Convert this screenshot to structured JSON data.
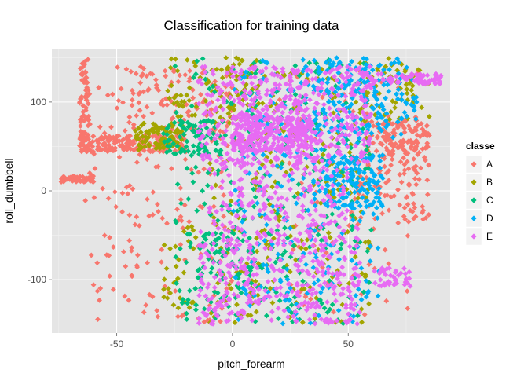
{
  "chart_data": {
    "type": "scatter",
    "title": "Classification for training data",
    "xlabel": "pitch_forearm",
    "ylabel": "roll_dumbbell",
    "xlim": [
      -78,
      94
    ],
    "ylim": [
      -160,
      160
    ],
    "x_ticks": [
      -50,
      0,
      50
    ],
    "y_ticks": [
      -100,
      0,
      100
    ],
    "x_tick_labels": [
      "-50",
      "0",
      "50"
    ],
    "y_tick_labels": [
      "-100",
      "0",
      "100"
    ],
    "grid": true,
    "panel_background": "#e5e5e5",
    "legend": {
      "title": "classe",
      "placement": "right",
      "entries": [
        {
          "label": "A",
          "color": "#F8766D"
        },
        {
          "label": "B",
          "color": "#A3A500"
        },
        {
          "label": "C",
          "color": "#00BF7D"
        },
        {
          "label": "D",
          "color": "#00B0F6"
        },
        {
          "label": "E",
          "color": "#E76BF3"
        }
      ]
    },
    "series": [
      {
        "name": "A",
        "color": "#F8766D",
        "clusters": [
          {
            "x": [
              -66,
              -62
            ],
            "y": [
              50,
              148
            ],
            "weight": 70
          },
          {
            "x": [
              -66,
              -20
            ],
            "y": [
              44,
              62
            ],
            "weight": 200
          },
          {
            "x": [
              -75,
              -60
            ],
            "y": [
              10,
              17
            ],
            "weight": 60
          },
          {
            "x": [
              -65,
              0
            ],
            "y": [
              -150,
              140
            ],
            "weight": 180
          },
          {
            "x": [
              -45,
              0
            ],
            "y": [
              60,
              140
            ],
            "weight": 80
          },
          {
            "x": [
              58,
              85
            ],
            "y": [
              40,
              80
            ],
            "weight": 120
          },
          {
            "x": [
              50,
              85
            ],
            "y": [
              -40,
              40
            ],
            "weight": 100
          },
          {
            "x": [
              20,
              80
            ],
            "y": [
              -140,
              140
            ],
            "weight": 80
          }
        ]
      },
      {
        "name": "B",
        "color": "#A3A500",
        "clusters": [
          {
            "x": [
              -42,
              -20
            ],
            "y": [
              46,
              76
            ],
            "weight": 90
          },
          {
            "x": [
              -28,
              10
            ],
            "y": [
              80,
              150
            ],
            "weight": 70
          },
          {
            "x": [
              -10,
              60
            ],
            "y": [
              -150,
              150
            ],
            "weight": 280
          },
          {
            "x": [
              55,
              85
            ],
            "y": [
              80,
              150
            ],
            "weight": 60
          },
          {
            "x": [
              -30,
              -15
            ],
            "y": [
              -140,
              -40
            ],
            "weight": 30
          }
        ]
      },
      {
        "name": "C",
        "color": "#00BF7D",
        "clusters": [
          {
            "x": [
              -30,
              -5
            ],
            "y": [
              40,
              80
            ],
            "weight": 70
          },
          {
            "x": [
              -25,
              60
            ],
            "y": [
              -150,
              150
            ],
            "weight": 300
          },
          {
            "x": [
              -15,
              10
            ],
            "y": [
              -100,
              -40
            ],
            "weight": 60
          }
        ]
      },
      {
        "name": "D",
        "color": "#00B0F6",
        "clusters": [
          {
            "x": [
              30,
              80
            ],
            "y": [
              60,
              150
            ],
            "weight": 180
          },
          {
            "x": [
              40,
              65
            ],
            "y": [
              -20,
              40
            ],
            "weight": 130
          },
          {
            "x": [
              0,
              65
            ],
            "y": [
              -150,
              150
            ],
            "weight": 250
          }
        ]
      },
      {
        "name": "E",
        "color": "#E76BF3",
        "clusters": [
          {
            "x": [
              -15,
              60
            ],
            "y": [
              30,
              140
            ],
            "weight": 450
          },
          {
            "x": [
              0,
              35
            ],
            "y": [
              45,
              85
            ],
            "weight": 250
          },
          {
            "x": [
              -15,
              55
            ],
            "y": [
              -150,
              -40
            ],
            "weight": 350
          },
          {
            "x": [
              60,
              90
            ],
            "y": [
              120,
              132
            ],
            "weight": 70
          },
          {
            "x": [
              60,
              78
            ],
            "y": [
              -110,
              -85
            ],
            "weight": 40
          },
          {
            "x": [
              -10,
              50
            ],
            "y": [
              -40,
              40
            ],
            "weight": 180
          }
        ]
      }
    ]
  }
}
